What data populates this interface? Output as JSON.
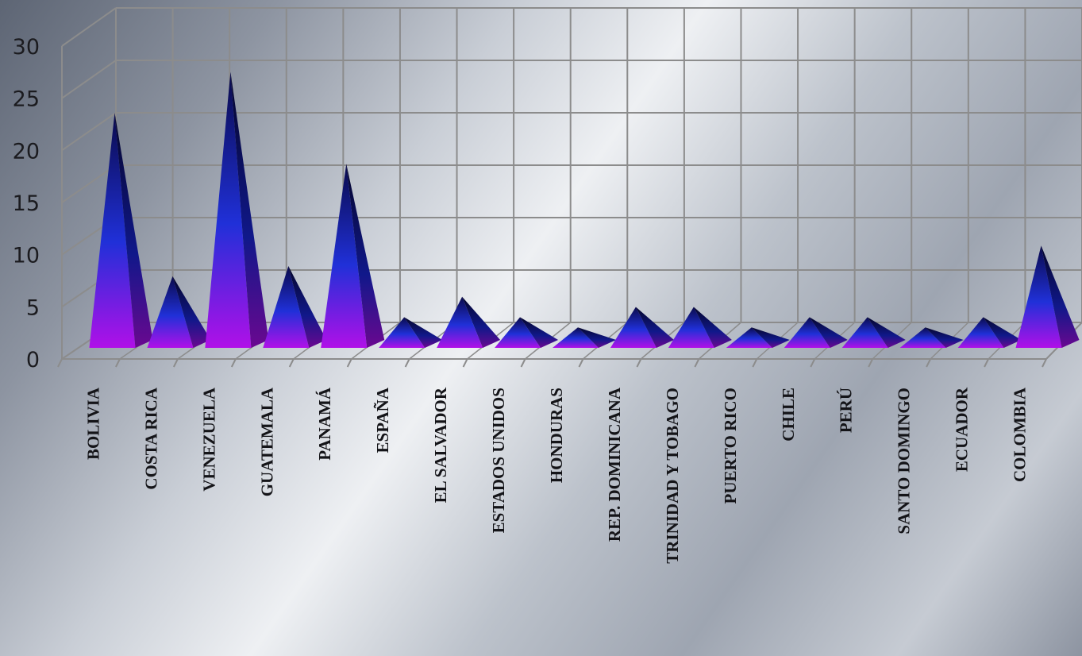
{
  "chart_data": {
    "type": "bar",
    "bar_shape": "pyramid",
    "three_d": true,
    "grid": true,
    "ylim": [
      0,
      30
    ],
    "y_ticks": [
      0,
      5,
      10,
      15,
      20,
      25,
      30
    ],
    "categories": [
      "BOLIVIA",
      "COSTA RICA",
      "VENEZUELA",
      "GUATEMALA",
      "PANAMÁ",
      "ESPAÑA",
      "EL SALVADOR",
      "ESTADOS UNIDOS",
      "HONDURAS",
      "REP. DOMINICANA",
      "TRINIDAD Y TOBAGO",
      "PUERTO RICO",
      "CHILE",
      "PERÚ",
      "SANTO DOMINGO",
      "ECUADOR",
      "COLOMBIA"
    ],
    "values": [
      23,
      7,
      27,
      8,
      18,
      3,
      5,
      3,
      2,
      4,
      4,
      2,
      3,
      3,
      2,
      3,
      10
    ],
    "colors": {
      "bar_top": "#0a0a4a",
      "bar_mid": "#2030d8",
      "bar_base": "#b010e8",
      "grid": "#8c8c8c"
    }
  }
}
